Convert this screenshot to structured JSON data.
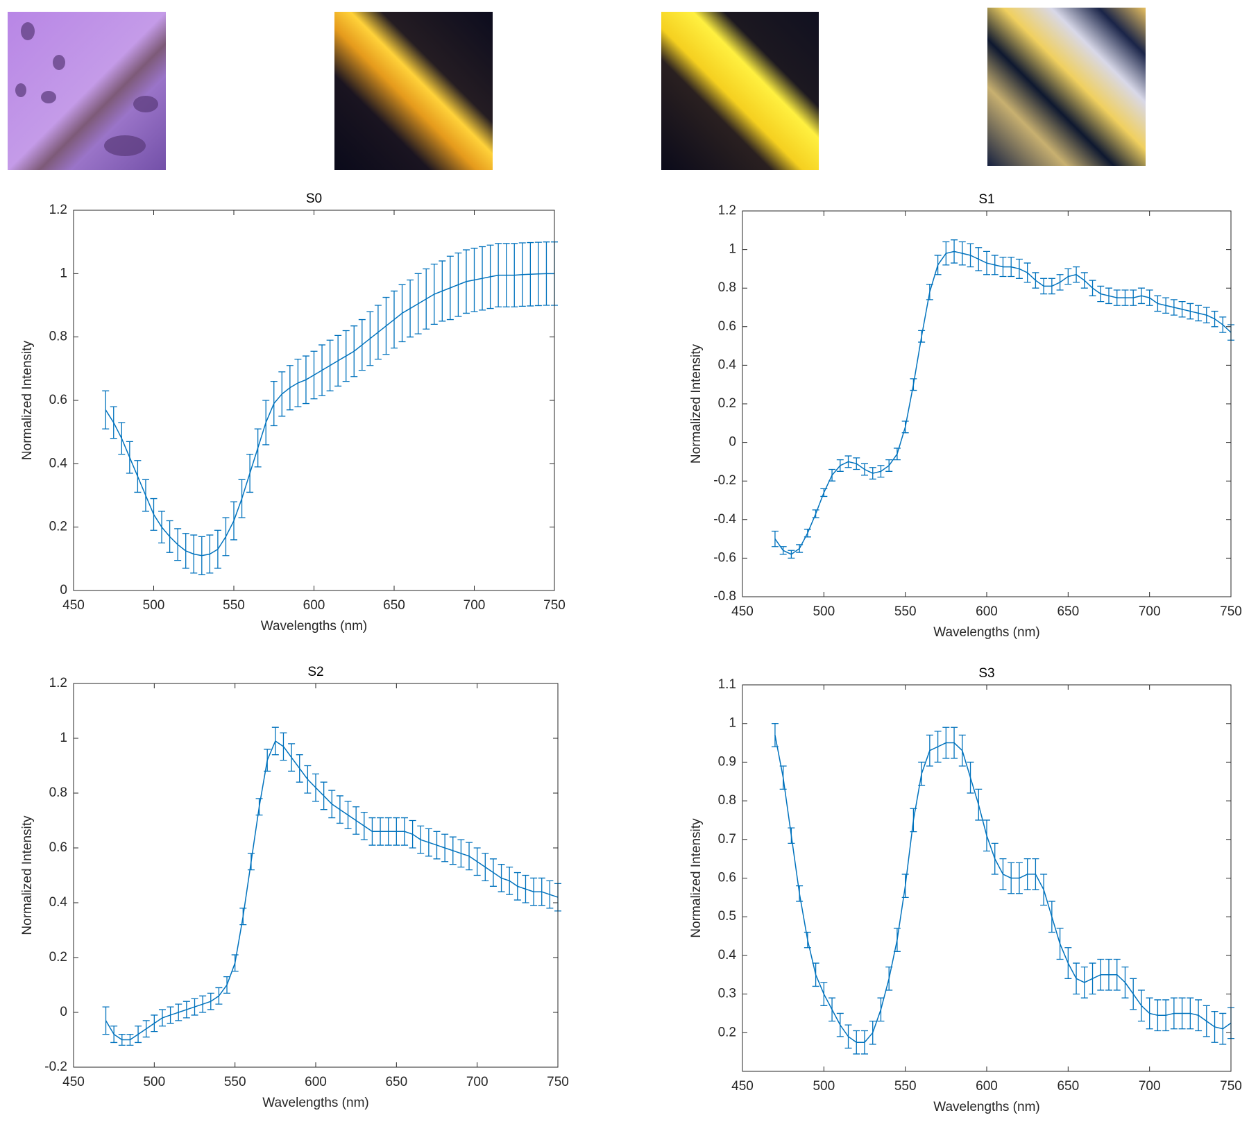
{
  "chart_data": [
    {
      "type": "line",
      "title": "S0",
      "xlabel": "Wavelengths (nm)",
      "ylabel": "Normalized Intensity",
      "x": [
        470,
        475,
        480,
        485,
        490,
        495,
        500,
        505,
        510,
        515,
        520,
        525,
        530,
        535,
        540,
        545,
        550,
        555,
        560,
        565,
        570,
        575,
        580,
        585,
        590,
        595,
        600,
        605,
        610,
        615,
        620,
        625,
        630,
        635,
        640,
        645,
        650,
        655,
        660,
        665,
        670,
        675,
        680,
        685,
        690,
        695,
        700,
        705,
        710,
        715,
        720,
        725,
        730,
        735,
        740,
        745,
        750
      ],
      "series": [
        {
          "color": "#0072bd",
          "values": [
            0.57,
            0.53,
            0.48,
            0.42,
            0.36,
            0.3,
            0.24,
            0.2,
            0.17,
            0.145,
            0.125,
            0.115,
            0.11,
            0.115,
            0.13,
            0.17,
            0.22,
            0.29,
            0.37,
            0.45,
            0.53,
            0.59,
            0.62,
            0.64,
            0.655,
            0.665,
            0.68,
            0.695,
            0.71,
            0.725,
            0.74,
            0.755,
            0.775,
            0.795,
            0.815,
            0.835,
            0.855,
            0.875,
            0.89,
            0.905,
            0.92,
            0.935,
            0.945,
            0.955,
            0.965,
            0.975,
            0.98,
            0.985,
            0.99,
            0.995,
            0.995,
            0.995,
            0.997,
            0.998,
            0.999,
            1.0,
            1.0
          ],
          "errors": [
            0.06,
            0.05,
            0.05,
            0.05,
            0.05,
            0.05,
            0.05,
            0.05,
            0.05,
            0.05,
            0.055,
            0.06,
            0.06,
            0.06,
            0.06,
            0.06,
            0.06,
            0.06,
            0.06,
            0.06,
            0.07,
            0.07,
            0.07,
            0.07,
            0.075,
            0.075,
            0.075,
            0.08,
            0.08,
            0.08,
            0.08,
            0.08,
            0.08,
            0.085,
            0.085,
            0.09,
            0.09,
            0.09,
            0.09,
            0.095,
            0.095,
            0.095,
            0.095,
            0.1,
            0.1,
            0.1,
            0.1,
            0.1,
            0.1,
            0.1,
            0.1,
            0.1,
            0.1,
            0.1,
            0.1,
            0.1,
            0.1
          ]
        }
      ],
      "xlim": [
        450,
        750
      ],
      "xticks": [
        450,
        500,
        550,
        600,
        650,
        700,
        750
      ],
      "ylim": [
        0,
        1.2
      ],
      "yticks": [
        0,
        0.2,
        0.4,
        0.6,
        0.8,
        1,
        1.2
      ]
    },
    {
      "type": "line",
      "title": "S1",
      "xlabel": "Wavelengths (nm)",
      "ylabel": "Normalized Intensity",
      "x": [
        470,
        475,
        480,
        485,
        490,
        495,
        500,
        505,
        510,
        515,
        520,
        525,
        530,
        535,
        540,
        545,
        550,
        555,
        560,
        565,
        570,
        575,
        580,
        585,
        590,
        595,
        600,
        605,
        610,
        615,
        620,
        625,
        630,
        635,
        640,
        645,
        650,
        655,
        660,
        665,
        670,
        675,
        680,
        685,
        690,
        695,
        700,
        705,
        710,
        715,
        720,
        725,
        730,
        735,
        740,
        745,
        750
      ],
      "series": [
        {
          "color": "#0072bd",
          "values": [
            -0.5,
            -0.56,
            -0.58,
            -0.55,
            -0.47,
            -0.37,
            -0.26,
            -0.17,
            -0.12,
            -0.1,
            -0.11,
            -0.14,
            -0.16,
            -0.15,
            -0.12,
            -0.06,
            0.08,
            0.3,
            0.55,
            0.78,
            0.92,
            0.98,
            0.99,
            0.98,
            0.97,
            0.95,
            0.93,
            0.92,
            0.91,
            0.91,
            0.9,
            0.88,
            0.84,
            0.81,
            0.81,
            0.83,
            0.86,
            0.87,
            0.84,
            0.8,
            0.77,
            0.76,
            0.75,
            0.75,
            0.75,
            0.76,
            0.75,
            0.72,
            0.71,
            0.7,
            0.69,
            0.68,
            0.67,
            0.66,
            0.64,
            0.61,
            0.57
          ],
          "errors": [
            0.04,
            0.02,
            0.02,
            0.02,
            0.02,
            0.02,
            0.02,
            0.03,
            0.03,
            0.03,
            0.03,
            0.03,
            0.03,
            0.03,
            0.03,
            0.03,
            0.03,
            0.03,
            0.03,
            0.04,
            0.05,
            0.06,
            0.06,
            0.06,
            0.06,
            0.06,
            0.06,
            0.05,
            0.05,
            0.05,
            0.05,
            0.05,
            0.04,
            0.04,
            0.04,
            0.04,
            0.04,
            0.04,
            0.04,
            0.04,
            0.04,
            0.04,
            0.04,
            0.04,
            0.04,
            0.04,
            0.04,
            0.04,
            0.04,
            0.04,
            0.04,
            0.04,
            0.04,
            0.04,
            0.04,
            0.04,
            0.04
          ]
        }
      ],
      "xlim": [
        450,
        750
      ],
      "xticks": [
        450,
        500,
        550,
        600,
        650,
        700,
        750
      ],
      "ylim": [
        -0.8,
        1.2
      ],
      "yticks": [
        -0.8,
        -0.6,
        -0.4,
        -0.2,
        0,
        0.2,
        0.4,
        0.6,
        0.8,
        1,
        1.2
      ]
    },
    {
      "type": "line",
      "title": "S2",
      "xlabel": "Wavelengths (nm)",
      "ylabel": "Normalized Intensity",
      "x": [
        470,
        475,
        480,
        485,
        490,
        495,
        500,
        505,
        510,
        515,
        520,
        525,
        530,
        535,
        540,
        545,
        550,
        555,
        560,
        565,
        570,
        575,
        580,
        585,
        590,
        595,
        600,
        605,
        610,
        615,
        620,
        625,
        630,
        635,
        640,
        645,
        650,
        655,
        660,
        665,
        670,
        675,
        680,
        685,
        690,
        695,
        700,
        705,
        710,
        715,
        720,
        725,
        730,
        735,
        740,
        745,
        750
      ],
      "series": [
        {
          "color": "#0072bd",
          "values": [
            -0.03,
            -0.08,
            -0.1,
            -0.1,
            -0.08,
            -0.06,
            -0.04,
            -0.02,
            -0.01,
            0.0,
            0.01,
            0.02,
            0.03,
            0.04,
            0.06,
            0.1,
            0.18,
            0.35,
            0.55,
            0.75,
            0.92,
            0.99,
            0.97,
            0.93,
            0.89,
            0.85,
            0.82,
            0.79,
            0.76,
            0.74,
            0.72,
            0.7,
            0.68,
            0.66,
            0.66,
            0.66,
            0.66,
            0.66,
            0.65,
            0.63,
            0.62,
            0.61,
            0.6,
            0.59,
            0.58,
            0.57,
            0.55,
            0.53,
            0.51,
            0.49,
            0.48,
            0.46,
            0.45,
            0.44,
            0.44,
            0.43,
            0.42
          ],
          "errors": [
            0.05,
            0.03,
            0.02,
            0.02,
            0.03,
            0.03,
            0.03,
            0.03,
            0.03,
            0.03,
            0.03,
            0.03,
            0.03,
            0.03,
            0.03,
            0.03,
            0.03,
            0.03,
            0.03,
            0.03,
            0.04,
            0.05,
            0.05,
            0.05,
            0.05,
            0.05,
            0.05,
            0.05,
            0.05,
            0.05,
            0.05,
            0.05,
            0.05,
            0.05,
            0.05,
            0.05,
            0.05,
            0.05,
            0.05,
            0.05,
            0.05,
            0.05,
            0.05,
            0.05,
            0.05,
            0.05,
            0.05,
            0.05,
            0.05,
            0.05,
            0.05,
            0.05,
            0.05,
            0.05,
            0.05,
            0.05,
            0.05
          ]
        }
      ],
      "xlim": [
        450,
        750
      ],
      "xticks": [
        450,
        500,
        550,
        600,
        650,
        700,
        750
      ],
      "ylim": [
        -0.2,
        1.2
      ],
      "yticks": [
        -0.2,
        0,
        0.2,
        0.4,
        0.6,
        0.8,
        1,
        1.2
      ]
    },
    {
      "type": "line",
      "title": "S3",
      "xlabel": "Wavelengths (nm)",
      "ylabel": "Normalized Intensity",
      "x": [
        470,
        475,
        480,
        485,
        490,
        495,
        500,
        505,
        510,
        515,
        520,
        525,
        530,
        535,
        540,
        545,
        550,
        555,
        560,
        565,
        570,
        575,
        580,
        585,
        590,
        595,
        600,
        605,
        610,
        615,
        620,
        625,
        630,
        635,
        640,
        645,
        650,
        655,
        660,
        665,
        670,
        675,
        680,
        685,
        690,
        695,
        700,
        705,
        710,
        715,
        720,
        725,
        730,
        735,
        740,
        745,
        750
      ],
      "series": [
        {
          "color": "#0072bd",
          "values": [
            0.97,
            0.86,
            0.71,
            0.56,
            0.44,
            0.35,
            0.3,
            0.26,
            0.22,
            0.19,
            0.175,
            0.175,
            0.2,
            0.26,
            0.34,
            0.44,
            0.58,
            0.75,
            0.87,
            0.93,
            0.94,
            0.95,
            0.95,
            0.93,
            0.86,
            0.79,
            0.71,
            0.65,
            0.61,
            0.6,
            0.6,
            0.61,
            0.61,
            0.57,
            0.5,
            0.43,
            0.38,
            0.34,
            0.33,
            0.34,
            0.35,
            0.35,
            0.35,
            0.33,
            0.3,
            0.27,
            0.25,
            0.245,
            0.245,
            0.25,
            0.25,
            0.25,
            0.245,
            0.23,
            0.215,
            0.21,
            0.225
          ],
          "errors": [
            0.03,
            0.03,
            0.02,
            0.02,
            0.02,
            0.03,
            0.03,
            0.03,
            0.03,
            0.03,
            0.03,
            0.03,
            0.03,
            0.03,
            0.03,
            0.03,
            0.03,
            0.03,
            0.03,
            0.04,
            0.04,
            0.04,
            0.04,
            0.04,
            0.04,
            0.04,
            0.04,
            0.04,
            0.04,
            0.04,
            0.04,
            0.04,
            0.04,
            0.04,
            0.04,
            0.04,
            0.04,
            0.04,
            0.04,
            0.04,
            0.04,
            0.04,
            0.04,
            0.04,
            0.04,
            0.04,
            0.04,
            0.04,
            0.04,
            0.04,
            0.04,
            0.04,
            0.04,
            0.04,
            0.04,
            0.04,
            0.04
          ]
        }
      ],
      "xlim": [
        450,
        750
      ],
      "xticks": [
        450,
        500,
        550,
        600,
        650,
        700,
        750
      ],
      "ylim": [
        0.1,
        1.1
      ],
      "yticks": [
        0.2,
        0.3,
        0.4,
        0.5,
        0.6,
        0.7,
        0.8,
        0.9,
        1,
        1.1
      ]
    }
  ]
}
